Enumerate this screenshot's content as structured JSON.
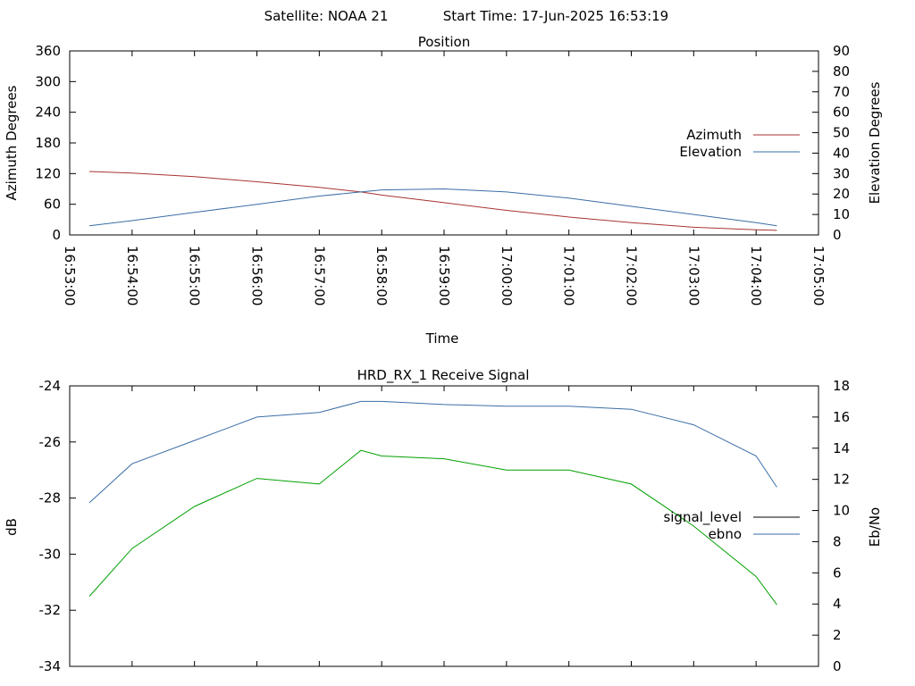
{
  "header": {
    "satellite": "Satellite: NOAA 21",
    "start_time": "Start Time: 17-Jun-2025 16:53:19"
  },
  "chart_data": [
    {
      "type": "line",
      "title": "Position",
      "xlabel": "Time",
      "ylabel": "Azimuth Degrees",
      "y2label": "Elevation Degrees",
      "xlim": [
        "16:53:00",
        "17:05:00"
      ],
      "ylim": [
        0,
        360
      ],
      "y2lim": [
        0,
        90
      ],
      "x_ticks": [
        "16:53:00",
        "16:54:00",
        "16:55:00",
        "16:56:00",
        "16:57:00",
        "16:58:00",
        "16:59:00",
        "17:00:00",
        "17:01:00",
        "17:02:00",
        "17:03:00",
        "17:04:00",
        "17:05:00"
      ],
      "y_ticks": [
        0,
        60,
        120,
        180,
        240,
        300,
        360
      ],
      "y2_ticks": [
        0,
        10,
        20,
        30,
        40,
        50,
        60,
        70,
        80,
        90
      ],
      "legend_position": "right",
      "series": [
        {
          "name": "Azimuth",
          "axis": "y",
          "color": "#a83232",
          "x": [
            "16:53:19",
            "16:54:00",
            "16:55:00",
            "16:56:00",
            "16:57:00",
            "16:57:40",
            "16:58:00",
            "16:59:00",
            "17:00:00",
            "17:01:00",
            "17:02:00",
            "17:03:00",
            "17:04:00",
            "17:04:20"
          ],
          "values": [
            124,
            121,
            114,
            104,
            93,
            84,
            78,
            63,
            48,
            35,
            24,
            15,
            10,
            9
          ]
        },
        {
          "name": "Elevation",
          "axis": "y2",
          "color": "#3a6ea5",
          "x": [
            "16:53:19",
            "16:54:00",
            "16:55:00",
            "16:56:00",
            "16:57:00",
            "16:57:40",
            "16:58:00",
            "16:59:00",
            "17:00:00",
            "17:01:00",
            "17:02:00",
            "17:03:00",
            "17:04:00",
            "17:04:20"
          ],
          "values": [
            4.5,
            7,
            11,
            15,
            19,
            21,
            22,
            22.5,
            21,
            18,
            14,
            10,
            6,
            4.5
          ]
        }
      ]
    },
    {
      "type": "line",
      "title": "HRD_RX_1 Receive Signal",
      "xlabel": "",
      "ylabel": "dB",
      "y2label": "Eb/No",
      "ylim": [
        -34,
        -24
      ],
      "y2lim": [
        0,
        18
      ],
      "y_ticks": [
        -34,
        -32,
        -30,
        -28,
        -26,
        -24
      ],
      "y2_ticks": [
        0,
        2,
        4,
        6,
        8,
        10,
        12,
        14,
        16,
        18
      ],
      "legend_position": "right",
      "series": [
        {
          "name": "signal_level",
          "axis": "y",
          "color": "#000000",
          "x": [],
          "values": []
        },
        {
          "name": "ebno",
          "axis": "y2",
          "color": "#3a6ea5",
          "x": [
            "16:53:19",
            "16:54:00",
            "16:55:00",
            "16:56:00",
            "16:57:00",
            "16:57:40",
            "16:58:00",
            "16:59:00",
            "17:00:00",
            "17:01:00",
            "17:02:00",
            "17:03:00",
            "17:04:00",
            "17:04:20"
          ],
          "values": [
            10.5,
            13,
            14.5,
            16,
            16.3,
            17,
            17,
            16.8,
            16.7,
            16.7,
            16.5,
            15.5,
            13.5,
            11.5
          ]
        },
        {
          "name": "",
          "axis": "y",
          "color": "#00a000",
          "x": [
            "16:53:19",
            "16:54:00",
            "16:55:00",
            "16:56:00",
            "16:57:00",
            "16:57:40",
            "16:58:00",
            "16:59:00",
            "17:00:00",
            "17:01:00",
            "17:02:00",
            "17:03:00",
            "17:04:00",
            "17:04:20"
          ],
          "values": [
            -31.5,
            -29.8,
            -28.3,
            -27.3,
            -27.5,
            -26.3,
            -26.5,
            -26.6,
            -27.0,
            -27.0,
            -27.5,
            -29.0,
            -30.8,
            -31.8
          ]
        }
      ]
    }
  ]
}
